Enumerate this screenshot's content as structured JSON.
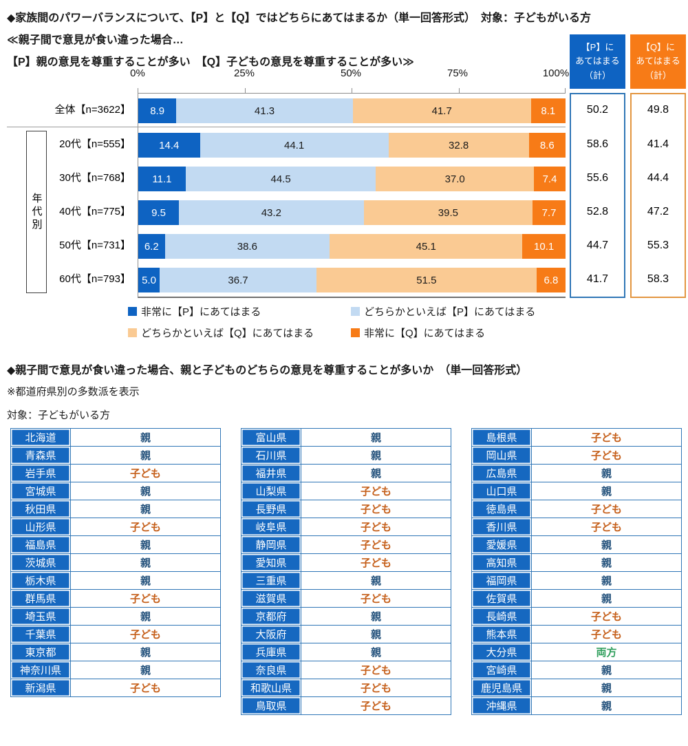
{
  "page": {
    "title": "◆家族間のパワーバランスについて、【P】と【Q】ではどちらにあてはまるか（単一回答形式）　対象：子どもがいる方",
    "subtitle_line1": "≪親子間で意見が食い違った場合…",
    "subtitle_line2": "【P】親の意見を尊重することが多い　【Q】子どもの意見を尊重することが多い≫"
  },
  "totals_header": {
    "p": "【P】に\nあてはまる\n（計）",
    "q": "【Q】に\nあてはまる\n（計）"
  },
  "chart_data": {
    "type": "bar",
    "stacked": true,
    "orientation": "horizontal",
    "unit": "%",
    "xlim": [
      0,
      100
    ],
    "axis_ticks": [
      "0%",
      "25%",
      "50%",
      "75%",
      "100%"
    ],
    "group_label": "年代別",
    "categories": [
      "全体【n=3622】",
      "20代【n=555】",
      "30代【n=768】",
      "40代【n=775】",
      "50代【n=731】",
      "60代【n=793】"
    ],
    "series": [
      {
        "name": "非常に【P】にあてはまる",
        "color": "#0E63C2",
        "label_color": "#ffffff",
        "values": [
          8.9,
          14.4,
          11.1,
          9.5,
          6.2,
          5.0
        ]
      },
      {
        "name": "どちらかといえば【P】にあてはまる",
        "color": "#C2DAF2",
        "label_color": "#1a1a1a",
        "values": [
          41.3,
          44.1,
          44.5,
          43.2,
          38.6,
          36.7
        ]
      },
      {
        "name": "どちらかといえば【Q】にあてはまる",
        "color": "#FACA93",
        "label_color": "#1a1a1a",
        "values": [
          41.7,
          32.8,
          37.0,
          39.5,
          45.1,
          51.5
        ]
      },
      {
        "name": "非常に【Q】にあてはまる",
        "color": "#F77B17",
        "label_color": "#ffffff",
        "values": [
          8.1,
          8.6,
          7.4,
          7.7,
          10.1,
          6.8
        ]
      }
    ],
    "totals": {
      "p": [
        50.2,
        58.6,
        55.6,
        52.8,
        44.7,
        41.7
      ],
      "q": [
        49.8,
        41.4,
        44.4,
        47.2,
        55.3,
        58.3
      ]
    },
    "legend_position": "bottom"
  },
  "section2": {
    "title": "◆親子間で意見が食い違った場合、親と子どものどちらの意見を尊重することが多いか　（単一回答形式）",
    "note": "※都道府県別の多数派を表示",
    "target": "対象：子どもがいる方"
  },
  "answer_colors": {
    "親": "#1F4E79",
    "子ども": "#C55F1A",
    "両方": "#2E9E5B"
  },
  "prefecture_tables": [
    {
      "rows": [
        {
          "pref": "北海道",
          "answer": "親"
        },
        {
          "pref": "青森県",
          "answer": "親"
        },
        {
          "pref": "岩手県",
          "answer": "子ども"
        },
        {
          "pref": "宮城県",
          "answer": "親"
        },
        {
          "pref": "秋田県",
          "answer": "親"
        },
        {
          "pref": "山形県",
          "answer": "子ども"
        },
        {
          "pref": "福島県",
          "answer": "親"
        },
        {
          "pref": "茨城県",
          "answer": "親"
        },
        {
          "pref": "栃木県",
          "answer": "親"
        },
        {
          "pref": "群馬県",
          "answer": "子ども"
        },
        {
          "pref": "埼玉県",
          "answer": "親"
        },
        {
          "pref": "千葉県",
          "answer": "子ども"
        },
        {
          "pref": "東京都",
          "answer": "親"
        },
        {
          "pref": "神奈川県",
          "answer": "親"
        },
        {
          "pref": "新潟県",
          "answer": "子ども"
        }
      ]
    },
    {
      "rows": [
        {
          "pref": "富山県",
          "answer": "親"
        },
        {
          "pref": "石川県",
          "answer": "親"
        },
        {
          "pref": "福井県",
          "answer": "親"
        },
        {
          "pref": "山梨県",
          "answer": "子ども"
        },
        {
          "pref": "長野県",
          "answer": "子ども"
        },
        {
          "pref": "岐阜県",
          "answer": "子ども"
        },
        {
          "pref": "静岡県",
          "answer": "子ども"
        },
        {
          "pref": "愛知県",
          "answer": "子ども"
        },
        {
          "pref": "三重県",
          "answer": "親"
        },
        {
          "pref": "滋賀県",
          "answer": "子ども"
        },
        {
          "pref": "京都府",
          "answer": "親"
        },
        {
          "pref": "大阪府",
          "answer": "親"
        },
        {
          "pref": "兵庫県",
          "answer": "親"
        },
        {
          "pref": "奈良県",
          "answer": "子ども"
        },
        {
          "pref": "和歌山県",
          "answer": "子ども"
        },
        {
          "pref": "鳥取県",
          "answer": "子ども"
        }
      ]
    },
    {
      "rows": [
        {
          "pref": "島根県",
          "answer": "子ども"
        },
        {
          "pref": "岡山県",
          "answer": "子ども"
        },
        {
          "pref": "広島県",
          "answer": "親"
        },
        {
          "pref": "山口県",
          "answer": "親"
        },
        {
          "pref": "徳島県",
          "answer": "子ども"
        },
        {
          "pref": "香川県",
          "answer": "子ども"
        },
        {
          "pref": "愛媛県",
          "answer": "親"
        },
        {
          "pref": "高知県",
          "answer": "親"
        },
        {
          "pref": "福岡県",
          "answer": "親"
        },
        {
          "pref": "佐賀県",
          "answer": "親"
        },
        {
          "pref": "長崎県",
          "answer": "子ども"
        },
        {
          "pref": "熊本県",
          "answer": "子ども"
        },
        {
          "pref": "大分県",
          "answer": "両方"
        },
        {
          "pref": "宮崎県",
          "answer": "親"
        },
        {
          "pref": "鹿児島県",
          "answer": "親"
        },
        {
          "pref": "沖縄県",
          "answer": "親"
        }
      ]
    }
  ]
}
